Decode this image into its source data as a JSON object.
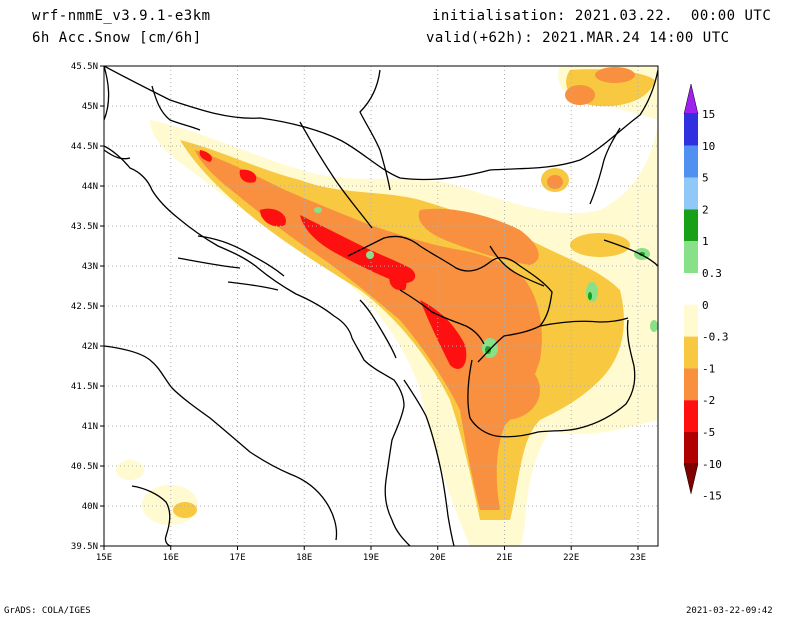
{
  "header": {
    "model": "wrf-nmmE_v3.9.1-e3km",
    "field": "6h Acc.Snow [cm/6h]",
    "initialisation": "initialisation: 2021.03.22.  00:00 UTC",
    "valid": "valid(+62h): 2021.MAR.24 14:00 UTC"
  },
  "footer": {
    "left": "GrADS: COLA/IGES",
    "right": "2021-03-22-09:42"
  },
  "map": {
    "lon_range": [
      15,
      23.3
    ],
    "lat_range": [
      39.5,
      45.5
    ],
    "lon_ticks": [
      "15E",
      "16E",
      "17E",
      "18E",
      "19E",
      "20E",
      "21E",
      "22E",
      "23E"
    ],
    "lat_ticks": [
      "45.5N",
      "45N",
      "44.5N",
      "44N",
      "43.5N",
      "43N",
      "42.5N",
      "42N",
      "41.5N",
      "41N",
      "40.5N",
      "40N",
      "39.5N"
    ],
    "grid": true
  },
  "legend": {
    "levels": [
      "15",
      "10",
      "5",
      "2",
      "1",
      "0.3",
      "0",
      "-0.3",
      "-1",
      "-2",
      "-5",
      "-10",
      "-15"
    ],
    "colors": [
      "#3030e0",
      "#5090f0",
      "#90c8f8",
      "#18a018",
      "#88e088",
      "#ffffff",
      "#fffad0",
      "#f8c840",
      "#f89040",
      "#ff1010",
      "#b00000"
    ],
    "top_arrow_color": "#a020f0",
    "bottom_arrow_color": "#800000"
  }
}
